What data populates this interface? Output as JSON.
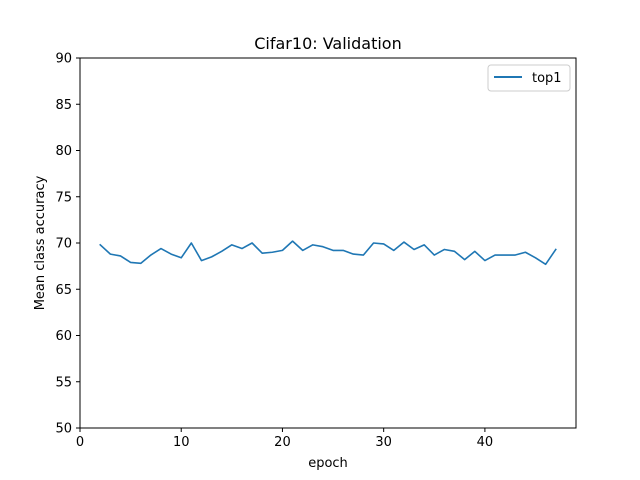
{
  "chart_data": {
    "type": "line",
    "title": "Cifar10: Validation",
    "xlabel": "epoch",
    "ylabel": "Mean class accuracy",
    "xlim": [
      0,
      49
    ],
    "ylim": [
      50,
      90
    ],
    "xticks": [
      0,
      10,
      20,
      30,
      40
    ],
    "yticks": [
      50,
      55,
      60,
      65,
      70,
      75,
      80,
      85,
      90
    ],
    "grid": false,
    "legend": "top-right",
    "series": [
      {
        "name": "top1",
        "color": "#1f77b4",
        "x": [
          2,
          3,
          4,
          5,
          6,
          7,
          8,
          9,
          10,
          11,
          12,
          13,
          14,
          15,
          16,
          17,
          18,
          19,
          20,
          21,
          22,
          23,
          24,
          25,
          26,
          27,
          28,
          29,
          30,
          31,
          32,
          33,
          34,
          35,
          36,
          37,
          38,
          39,
          40,
          41,
          42,
          43,
          44,
          45,
          46,
          47
        ],
        "y": [
          69.8,
          68.8,
          68.6,
          67.9,
          67.8,
          68.7,
          69.4,
          68.8,
          68.4,
          70.0,
          68.1,
          68.5,
          69.1,
          69.8,
          69.4,
          70.0,
          68.9,
          69.0,
          69.2,
          70.2,
          69.2,
          69.8,
          69.6,
          69.2,
          69.2,
          68.8,
          68.7,
          70.0,
          69.9,
          69.2,
          70.1,
          69.3,
          69.8,
          68.7,
          69.3,
          69.1,
          68.2,
          69.1,
          68.1,
          68.7,
          68.7,
          68.7,
          69.0,
          68.4,
          67.7,
          69.3
        ]
      }
    ]
  }
}
